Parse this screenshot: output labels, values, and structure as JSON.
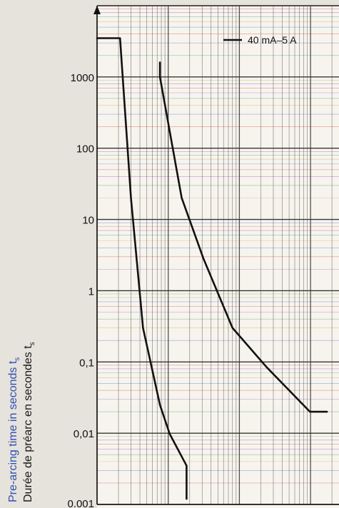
{
  "chart_data": {
    "type": "line",
    "title": "",
    "ylabel_en": "Pre-arcing time in seconds t",
    "ylabel_fr": "Durée de préarc en secondes t",
    "ylabel_subscript": "s",
    "y_scale": "log",
    "ylim": [
      0.001,
      10000
    ],
    "y_ticks": [
      {
        "value": 1000,
        "label": "1000"
      },
      {
        "value": 100,
        "label": "100"
      },
      {
        "value": 10,
        "label": "10"
      },
      {
        "value": 1,
        "label": "1"
      },
      {
        "value": 0.1,
        "label": "0,1"
      },
      {
        "value": 0.01,
        "label": "0,01"
      },
      {
        "value": 0.001,
        "label": "0.001"
      }
    ],
    "grid": true,
    "legend": {
      "placement": "top-right",
      "label": "40 mA–5 A"
    },
    "series": [
      {
        "name": "",
        "points": [
          [
            0.0,
            3500
          ],
          [
            0.095,
            3500
          ],
          [
            0.14,
            20
          ],
          [
            0.19,
            0.3
          ],
          [
            0.26,
            0.025
          ],
          [
            0.3,
            0.0098
          ],
          [
            0.37,
            0.0035
          ],
          [
            0.37,
            0.0012
          ]
        ]
      },
      {
        "name": "",
        "points": [
          [
            0.26,
            1600
          ],
          [
            0.26,
            1000
          ],
          [
            0.35,
            20
          ],
          [
            0.44,
            2.8
          ],
          [
            0.56,
            0.3
          ],
          [
            0.7,
            0.085
          ],
          [
            0.88,
            0.02
          ],
          [
            0.95,
            0.02
          ]
        ]
      }
    ]
  }
}
